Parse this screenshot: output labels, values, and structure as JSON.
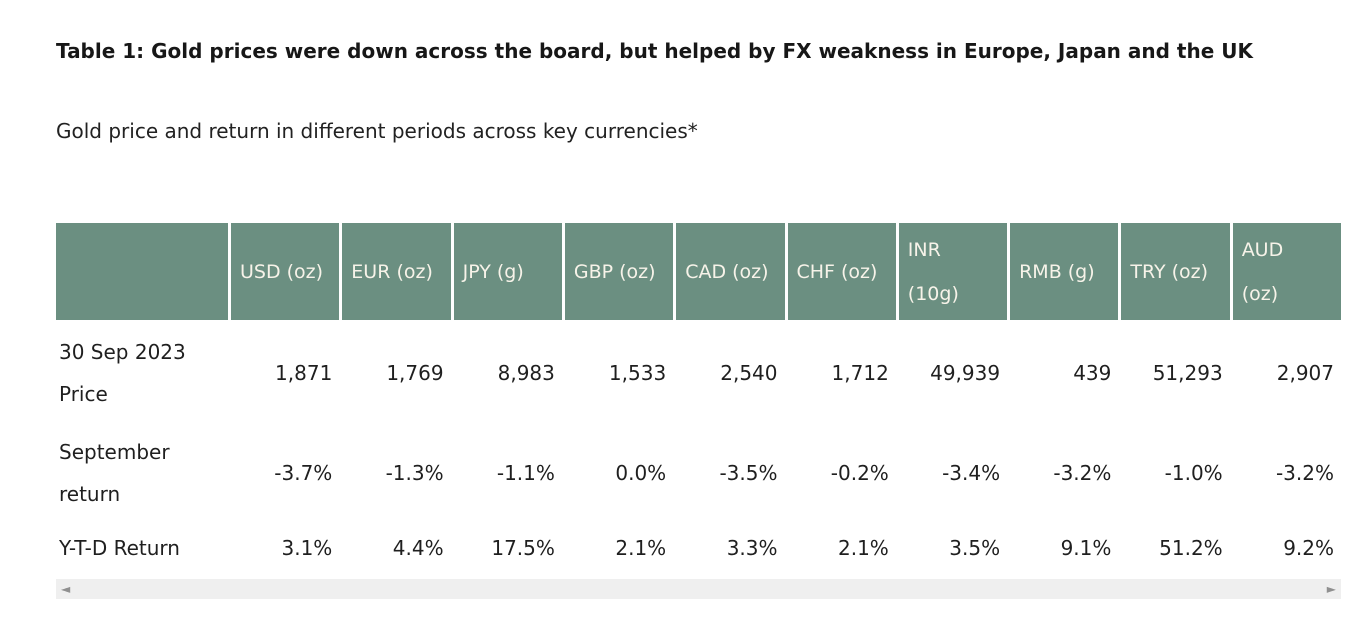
{
  "colors": {
    "header_background": "#6b8f81",
    "header_text": "#f7f3e9",
    "body_text": "#1f1f1f",
    "scrollbar_track": "#efefef",
    "scrollbar_arrow": "#909090"
  },
  "icons": {
    "scroll_left": "◄",
    "scroll_right": "►"
  },
  "chart_data": {
    "type": "table",
    "title": "Table 1: Gold prices were down across the board, but helped by FX weakness in Europe, Japan and the UK",
    "subtitle": "Gold price and return in different periods across key currencies*",
    "columns": [
      "",
      "USD (oz)",
      "EUR (oz)",
      "JPY (g)",
      "GBP (oz)",
      "CAD (oz)",
      "CHF (oz)",
      "INR\n(10g)",
      "RMB (g)",
      "TRY (oz)",
      "AUD\n(oz)"
    ],
    "rows": [
      {
        "label": "30 Sep 2023\nPrice",
        "values": [
          "1,871",
          "1,769",
          "8,983",
          "1,533",
          "2,540",
          "1,712",
          "49,939",
          "439",
          "51,293",
          "2,907"
        ]
      },
      {
        "label": "September\nreturn",
        "values": [
          "-3.7%",
          "-1.3%",
          "-1.1%",
          "0.0%",
          "-3.5%",
          "-0.2%",
          "-3.4%",
          "-3.2%",
          "-1.0%",
          "-3.2%"
        ]
      },
      {
        "label": "Y-T-D Return",
        "values": [
          "3.1%",
          "4.4%",
          "17.5%",
          "2.1%",
          "3.3%",
          "2.1%",
          "3.5%",
          "9.1%",
          "51.2%",
          "9.2%"
        ]
      }
    ]
  }
}
